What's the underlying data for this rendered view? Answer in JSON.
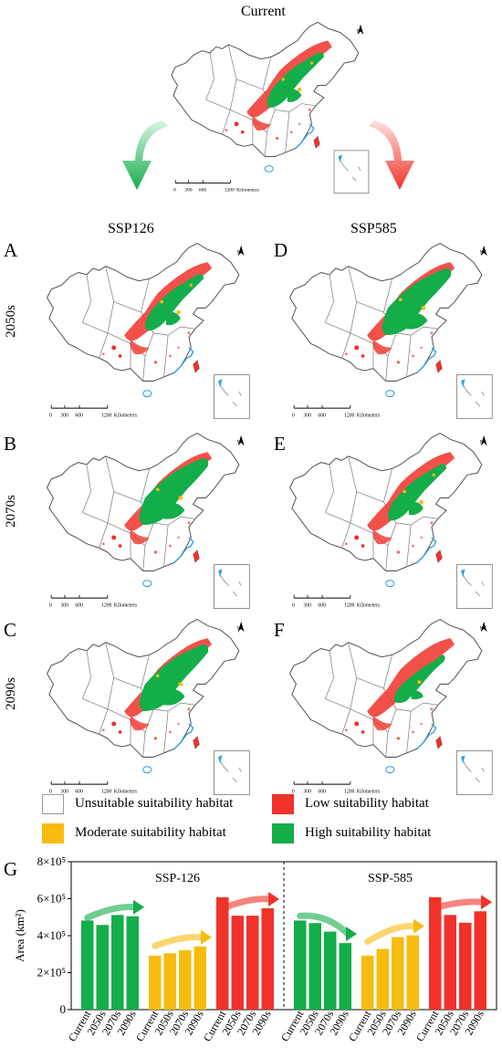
{
  "maps": {
    "current": {
      "title": "Current"
    },
    "col_titles": [
      "SSP126",
      "SSP585"
    ],
    "row_labels": [
      "2050s",
      "2070s",
      "2090s"
    ],
    "panels": [
      "A",
      "B",
      "C",
      "D",
      "E",
      "F"
    ],
    "scale_ticks": [
      "0",
      "300",
      "600",
      "1200"
    ],
    "scale_unit": "Kilometers",
    "north_label": "N"
  },
  "legend": {
    "items": [
      {
        "label": "Unsuitable suitability habitat",
        "color": "#ffffff"
      },
      {
        "label": "Low suitability habitat",
        "color": "#f0322a"
      },
      {
        "label": "Moderate suitability habitat",
        "color": "#f8bb10"
      },
      {
        "label": "High suitability habitat",
        "color": "#13ad4a"
      }
    ]
  },
  "chart_data": {
    "type": "bar",
    "panel_label": "G",
    "ylabel": "Area (km²)",
    "ylim": [
      0,
      800000
    ],
    "ytick_values": [
      0,
      200000,
      400000,
      600000,
      800000
    ],
    "ytick_labels": [
      "0",
      "2×10⁵",
      "4×10⁵",
      "6×10⁵",
      "8×10⁵"
    ],
    "scenarios": [
      {
        "name": "SSP-126",
        "groups": [
          {
            "color": "#13ad4a",
            "categories": [
              "Current",
              "2050s",
              "2070s",
              "2090s"
            ],
            "values": [
              482000,
              458000,
              512000,
              505000
            ]
          },
          {
            "color": "#f8bb10",
            "categories": [
              "Current",
              "2050s",
              "2070s",
              "2090s"
            ],
            "values": [
              292000,
              305000,
              322000,
              342000
            ]
          },
          {
            "color": "#f0322a",
            "categories": [
              "Current",
              "2050s",
              "2070s",
              "2090s"
            ],
            "values": [
              608000,
              508000,
              508000,
              548000
            ]
          }
        ]
      },
      {
        "name": "SSP-585",
        "groups": [
          {
            "color": "#13ad4a",
            "categories": [
              "Current",
              "2050s",
              "2070s",
              "2090s"
            ],
            "values": [
              482000,
              468000,
              422000,
              360000
            ]
          },
          {
            "color": "#f8bb10",
            "categories": [
              "Current",
              "2050s",
              "2070s",
              "2090s"
            ],
            "values": [
              292000,
              328000,
              392000,
              402000
            ]
          },
          {
            "color": "#f0322a",
            "categories": [
              "Current",
              "2050s",
              "2070s",
              "2090s"
            ],
            "values": [
              608000,
              512000,
              470000,
              532000
            ]
          }
        ]
      }
    ]
  }
}
